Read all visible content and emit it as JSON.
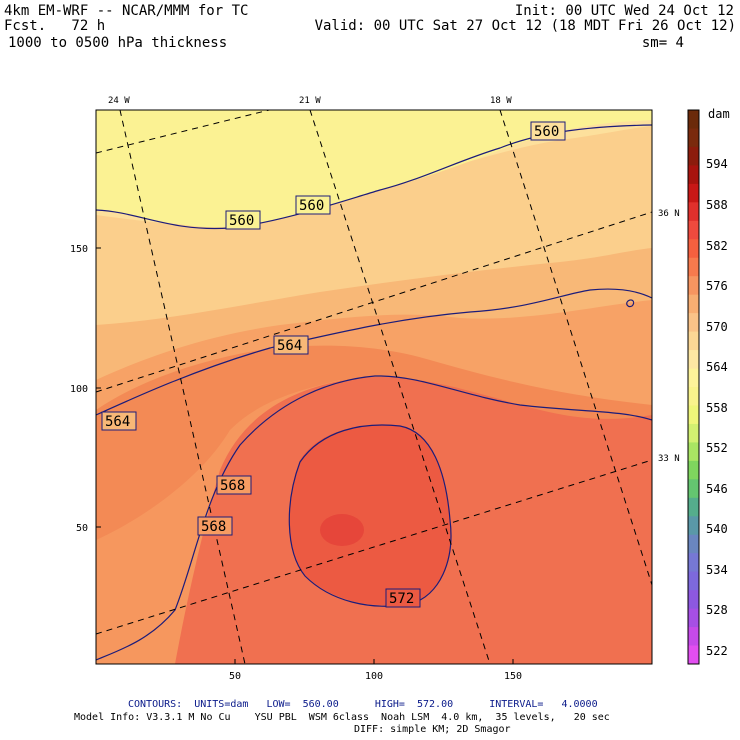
{
  "header": {
    "line1_left": "4km EM-WRF -- NCAR/MMM for TC",
    "line2_left": "Fcst.   72 h",
    "line3_left": "1000 to 0500 hPa thickness",
    "line1_right": "Init: 00 UTC Wed 24 Oct 12",
    "line2_right": "Valid: 00 UTC Sat 27 Oct 12 (18 MDT Fri 26 Oct 12)",
    "line3_right": "sm= 4"
  },
  "map": {
    "lon_labels": [
      "24 W",
      "21 W",
      "18 W"
    ],
    "lat_labels": [
      "36 N",
      "33 N"
    ],
    "y_ticks": [
      "150",
      "100",
      "50"
    ],
    "x_ticks": [
      "50",
      "100",
      "150"
    ],
    "contour_labels": [
      "560",
      "560",
      "560",
      "564",
      "564",
      "568",
      "568",
      "572"
    ]
  },
  "colorbar": {
    "unit": "dam",
    "labels": [
      "594",
      "588",
      "582",
      "576",
      "570",
      "564",
      "558",
      "552",
      "546",
      "540",
      "534",
      "528",
      "522"
    ],
    "colors": [
      "#6b2a0a",
      "#7a2a0d",
      "#8c1c0c",
      "#a8140e",
      "#c81816",
      "#e0302c",
      "#ee4a3e",
      "#f5603f",
      "#f77a4d",
      "#f79560",
      "#f8ae72",
      "#fac388",
      "#fbd795",
      "#fde7a3",
      "#fdf39a",
      "#f9f38c",
      "#eff67a",
      "#d2f071",
      "#a9e563",
      "#7fd65e",
      "#64c570",
      "#55ad8c",
      "#5a98a8",
      "#6a86c0",
      "#7678d4",
      "#7d69dc",
      "#8d58e0",
      "#a64fe5",
      "#c64ae9",
      "#e24ef0"
    ]
  },
  "footer": {
    "contours": "CONTOURS:  UNITS=dam   LOW=  560.00      HIGH=  572.00      INTERVAL=   4.0000",
    "model_info": "Model Info: V3.3.1 M No Cu    YSU PBL  WSM 6class  Noah LSM  4.0 km,  35 levels,   20 sec",
    "model_info2": "DIFF: simple KM; 2D Smagor"
  }
}
